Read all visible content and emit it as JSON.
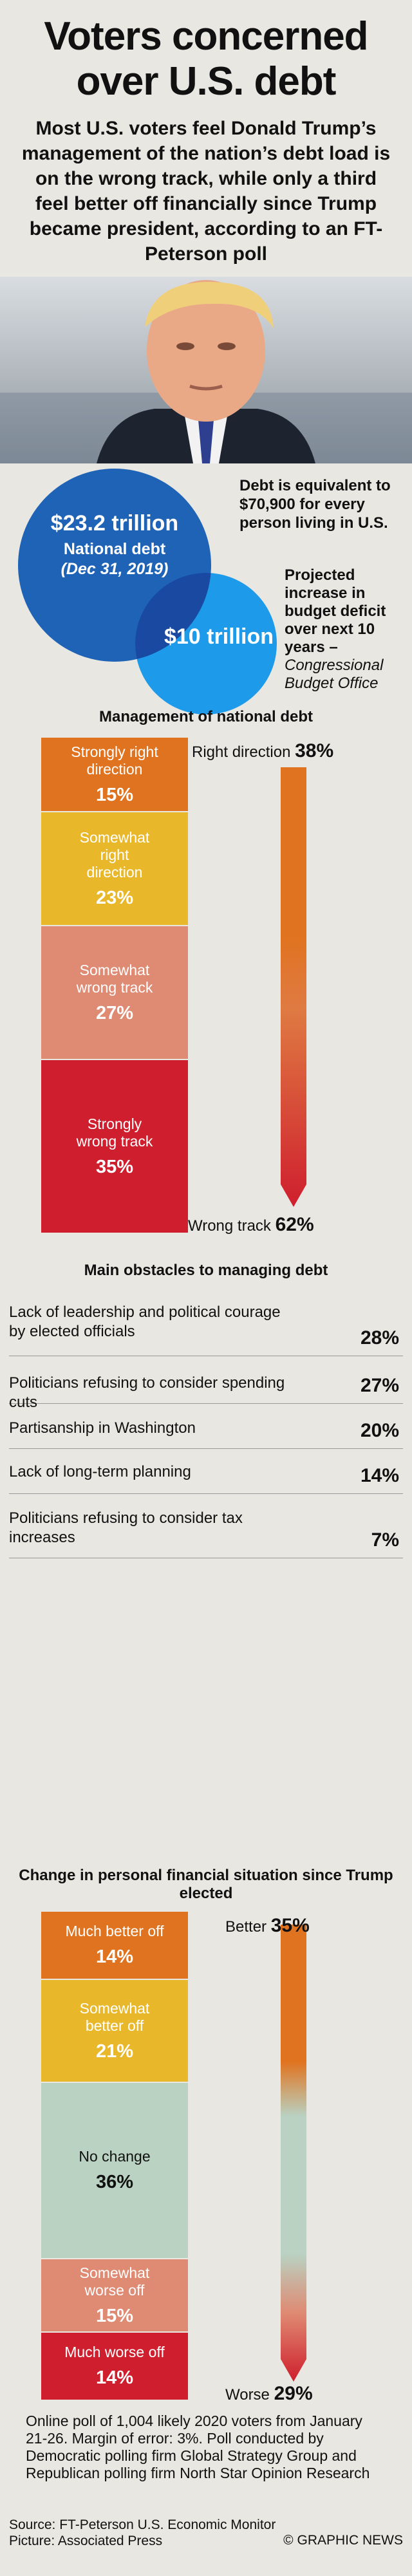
{
  "title_line1": "Voters concerned",
  "title_line2": "over U.S. debt",
  "intro": "Most U.S. voters feel Donald Trump’s management of the nation’s debt load is on the wrong track, while only a third feel better off financially since Trump became president, according to an FT-Peterson poll",
  "debt": {
    "national_value": "$23.2 trillion",
    "national_label": "National debt",
    "national_date": "(Dec 31, 2019)",
    "note_a": "Debt is equivalent to $70,900 for every person living in U.S.",
    "deficit_value": "$10 trillion",
    "note_b_bold": "Projected increase in budget deficit over next 10 years –",
    "note_b_source": "Congressional Budget Office"
  },
  "colors": {
    "bg": "#e9e7e2",
    "dark_orange": "#e0731f",
    "gold": "#e8b82a",
    "salmon": "#df8a72",
    "red": "#cf1f2e",
    "sage": "#b9d2c2",
    "blue_dark": "#1f63b6",
    "blue_light": "#1d9bea"
  },
  "chart_data": [
    {
      "type": "bar",
      "title": "Management of national debt",
      "categories": [
        "Strongly right direction",
        "Somewhat right direction",
        "Somewhat wrong track",
        "Strongly wrong track"
      ],
      "values": [
        15,
        23,
        27,
        35
      ],
      "unit": "%",
      "totals": [
        {
          "label": "Right direction",
          "value": "38%"
        },
        {
          "label": "Wrong track",
          "value": "62%"
        }
      ]
    },
    {
      "type": "table",
      "title": "Main obstacles to managing debt",
      "categories": [
        "Lack of leadership and political courage by elected officials",
        "Politicians refusing to consider spending cuts",
        "Partisanship in Washington",
        "Lack of long-term planning",
        "Politicians refusing to consider tax increases"
      ],
      "values": [
        28,
        27,
        20,
        14,
        7
      ],
      "unit": "%"
    },
    {
      "type": "bar",
      "title": "Change in personal financial situation since Trump elected",
      "categories": [
        "Much better off",
        "Somewhat better off",
        "No change",
        "Somewhat worse off",
        "Much worse off"
      ],
      "values": [
        14,
        21,
        36,
        15,
        14
      ],
      "unit": "%",
      "totals": [
        {
          "label": "Better",
          "value": "35%"
        },
        {
          "label": "Worse",
          "value": "29%"
        }
      ]
    }
  ],
  "footnote": "Online poll of 1,004 likely 2020 voters from January 21-26. Margin of error: 3%. Poll conducted by Democratic polling firm Global Strategy Group and Republican polling firm North Star Opinion Research",
  "source_line": "Source: FT-Peterson U.S. Economic Monitor",
  "picture_line": "Picture: Associated Press",
  "logo": "© GRAPHIC NEWS"
}
